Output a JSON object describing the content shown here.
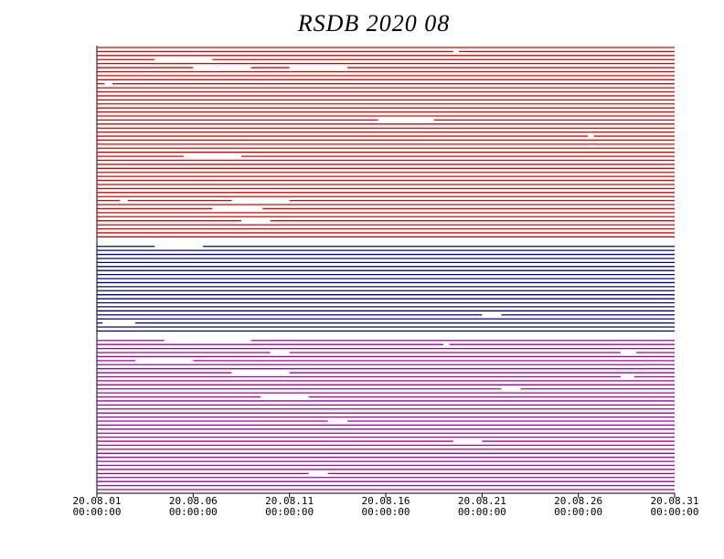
{
  "chart_data": {
    "type": "availability",
    "title": "RSDB  2020  08",
    "xlim": [
      1,
      31
    ],
    "xticks": [
      {
        "value": 1,
        "label": "20.08.01\n00:00:00"
      },
      {
        "value": 6,
        "label": "20.08.06\n00:00:00"
      },
      {
        "value": 11,
        "label": "20.08.11\n00:00:00"
      },
      {
        "value": 16,
        "label": "20.08.16\n00:00:00"
      },
      {
        "value": 21,
        "label": "20.08.21\n00:00:00"
      },
      {
        "value": 26,
        "label": "20.08.26\n00:00:00"
      },
      {
        "value": 31,
        "label": "20.08.31\n00:00:00"
      }
    ],
    "series": [
      {
        "color": "#dd0000",
        "rows": [
          [
            [
              1,
              31
            ]
          ],
          [
            [
              1,
              19.5
            ],
            [
              19.8,
              31
            ]
          ],
          [
            [
              1,
              31
            ]
          ],
          [
            [
              1,
              4
            ],
            [
              7,
              31
            ]
          ],
          [
            [
              1,
              31
            ]
          ],
          [
            [
              1,
              6
            ],
            [
              9,
              11
            ],
            [
              14,
              31
            ]
          ],
          [
            [
              1,
              31
            ]
          ],
          [
            [
              1,
              31
            ]
          ],
          [
            [
              1,
              31
            ]
          ],
          [
            [
              1,
              1.4
            ],
            [
              1.8,
              31
            ]
          ],
          [
            [
              1,
              31
            ]
          ],
          [
            [
              1,
              31
            ]
          ],
          [
            [
              1,
              31
            ]
          ],
          [
            [
              1,
              31
            ]
          ],
          [
            [
              1,
              31
            ]
          ],
          [
            [
              1,
              31
            ]
          ],
          [
            [
              1,
              31
            ]
          ],
          [
            [
              1,
              31
            ]
          ],
          [
            [
              1,
              15.6
            ],
            [
              18.5,
              31
            ]
          ],
          [
            [
              1,
              31
            ]
          ],
          [
            [
              1,
              31
            ]
          ],
          [
            [
              1,
              31
            ]
          ],
          [
            [
              1,
              26.5
            ],
            [
              26.8,
              31
            ]
          ],
          [
            [
              1,
              31
            ]
          ],
          [
            [
              1,
              31
            ]
          ],
          [
            [
              1,
              31
            ]
          ],
          [
            [
              1,
              31
            ]
          ],
          [
            [
              1,
              5.5
            ],
            [
              8.5,
              31
            ]
          ],
          [
            [
              1,
              31
            ]
          ],
          [
            [
              1,
              31
            ]
          ],
          [
            [
              1,
              31
            ]
          ],
          [
            [
              1,
              31
            ]
          ],
          [
            [
              1,
              31
            ]
          ],
          [
            [
              1,
              31
            ]
          ],
          [
            [
              1,
              31
            ]
          ],
          [
            [
              1,
              31
            ]
          ],
          [
            [
              1,
              31
            ]
          ],
          [
            [
              1,
              31
            ]
          ],
          [
            [
              1,
              2.2
            ],
            [
              2.6,
              8
            ],
            [
              11,
              31
            ]
          ],
          [
            [
              1,
              31
            ]
          ],
          [
            [
              1,
              7
            ],
            [
              9.6,
              31
            ]
          ],
          [
            [
              1,
              31
            ]
          ],
          [
            [
              1,
              31
            ]
          ],
          [
            [
              1,
              8.5
            ],
            [
              10,
              31
            ]
          ],
          [
            [
              1,
              31
            ]
          ],
          [
            [
              1,
              31
            ]
          ],
          [
            [
              1,
              31
            ]
          ],
          [
            [
              1,
              31
            ]
          ]
        ]
      },
      {
        "color": "#00008b",
        "rows": [
          [
            [
              1,
              4
            ],
            [
              6.5,
              31
            ]
          ],
          [
            [
              1,
              31
            ]
          ],
          [
            [
              1,
              31
            ]
          ],
          [
            [
              1,
              31
            ]
          ],
          [
            [
              1,
              31
            ]
          ],
          [
            [
              1,
              31
            ]
          ],
          [
            [
              1,
              31
            ]
          ],
          [
            [
              1,
              31
            ]
          ],
          [
            [
              1,
              31
            ]
          ],
          [
            [
              1,
              31
            ]
          ],
          [
            [
              1,
              31
            ]
          ],
          [
            [
              1,
              31
            ]
          ],
          [
            [
              1,
              31
            ]
          ],
          [
            [
              1,
              31
            ]
          ],
          [
            [
              1,
              31
            ]
          ],
          [
            [
              1,
              31
            ]
          ],
          [
            [
              1,
              31
            ]
          ],
          [
            [
              1,
              21
            ],
            [
              22,
              31
            ]
          ],
          [
            [
              1,
              31
            ]
          ],
          [
            [
              1,
              1.3
            ],
            [
              3,
              31
            ]
          ],
          [
            [
              1,
              31
            ]
          ],
          [
            [
              1,
              31
            ]
          ]
        ]
      },
      {
        "color": "#a000a0",
        "rows": [
          [
            [
              1,
              4.5
            ],
            [
              9,
              31
            ]
          ],
          [
            [
              1,
              19
            ],
            [
              19.3,
              31
            ]
          ],
          [
            [
              1,
              31
            ]
          ],
          [
            [
              1,
              10
            ],
            [
              11,
              28.2
            ],
            [
              29,
              31
            ]
          ],
          [
            [
              1,
              31
            ]
          ],
          [
            [
              1,
              3
            ],
            [
              6,
              31
            ]
          ],
          [
            [
              1,
              31
            ]
          ],
          [
            [
              1,
              31
            ]
          ],
          [
            [
              1,
              8
            ],
            [
              11,
              31
            ]
          ],
          [
            [
              1,
              28.2
            ],
            [
              28.9,
              31
            ]
          ],
          [
            [
              1,
              31
            ]
          ],
          [
            [
              1,
              31
            ]
          ],
          [
            [
              1,
              22
            ],
            [
              23,
              31
            ]
          ],
          [
            [
              1,
              31
            ]
          ],
          [
            [
              1,
              9.5
            ],
            [
              12,
              31
            ]
          ],
          [
            [
              1,
              31
            ]
          ],
          [
            [
              1,
              31
            ]
          ],
          [
            [
              1,
              31
            ]
          ],
          [
            [
              1,
              31
            ]
          ],
          [
            [
              1,
              31
            ]
          ],
          [
            [
              1,
              13
            ],
            [
              14,
              31
            ]
          ],
          [
            [
              1,
              31
            ]
          ],
          [
            [
              1,
              31
            ]
          ],
          [
            [
              1,
              31
            ]
          ],
          [
            [
              1,
              31
            ]
          ],
          [
            [
              1,
              19.5
            ],
            [
              21,
              31
            ]
          ],
          [
            [
              1,
              31
            ]
          ],
          [
            [
              1,
              31
            ]
          ],
          [
            [
              1,
              31
            ]
          ],
          [
            [
              1,
              31
            ]
          ],
          [
            [
              1,
              31
            ]
          ],
          [
            [
              1,
              31
            ]
          ],
          [
            [
              1,
              31
            ]
          ],
          [
            [
              1,
              12
            ],
            [
              13,
              31
            ]
          ],
          [
            [
              1,
              31
            ]
          ],
          [
            [
              1,
              31
            ]
          ],
          [
            [
              1,
              31
            ]
          ],
          [
            [
              1,
              31
            ]
          ]
        ]
      }
    ]
  }
}
